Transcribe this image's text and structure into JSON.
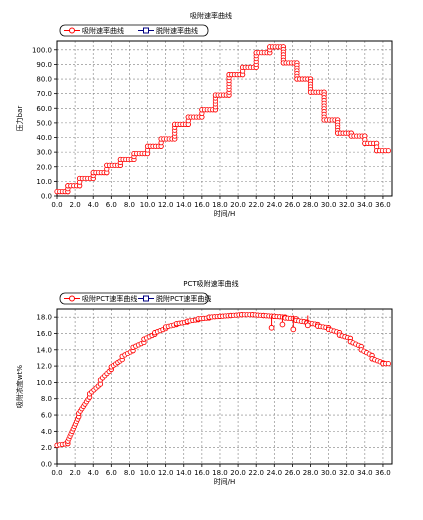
{
  "chart_data": [
    {
      "type": "line",
      "title": "吸附速率曲线",
      "xlabel": "时间/H",
      "ylabel": "压力bar",
      "xlim": [
        0,
        37
      ],
      "ylim": [
        0,
        106
      ],
      "xticks": [
        "0.0",
        "2.0",
        "4.0",
        "6.0",
        "8.0",
        "10.0",
        "12.0",
        "14.0",
        "16.0",
        "18.0",
        "20.0",
        "22.0",
        "24.0",
        "26.0",
        "28.0",
        "30.0",
        "32.0",
        "34.0",
        "36.0"
      ],
      "yticks": [
        "0.0",
        "10.0",
        "20.0",
        "30.0",
        "40.0",
        "50.0",
        "60.0",
        "70.0",
        "80.0",
        "90.0",
        "100.0"
      ],
      "grid": true,
      "legend_position": "top-left",
      "colors": {
        "adsorption": "#ff0000",
        "desorption": "#000080"
      },
      "series": [
        {
          "name": "吸附速率曲线",
          "x": [
            0,
            1.2,
            1.2,
            2.5,
            2.5,
            4.0,
            4.0,
            5.5,
            5.5,
            7.0,
            7.0,
            8.5,
            8.5,
            10.0,
            10.0,
            11.5,
            11.5,
            13.0,
            13.0,
            14.5,
            14.5,
            16.0,
            16.0,
            17.5,
            17.5,
            19.0,
            19.0,
            20.5,
            20.5,
            22.0,
            22.0,
            23.5,
            23.5,
            25.0,
            25.0,
            26.5,
            26.5,
            28.0,
            28.0,
            29.5,
            29.5,
            31.0,
            31.0,
            32.5,
            32.5,
            34.0,
            34.0,
            35.3,
            35.3,
            36.6
          ],
          "y": [
            3,
            3,
            7,
            7,
            12,
            12,
            16,
            16,
            21,
            21,
            25,
            25,
            29,
            29,
            34,
            34,
            39,
            39,
            49,
            49,
            54,
            54,
            59,
            59,
            69,
            69,
            83,
            83,
            88,
            88,
            98,
            98,
            102,
            102,
            91,
            91,
            80,
            80,
            71,
            71,
            52,
            52,
            43,
            43,
            41,
            41,
            36,
            36,
            31,
            31
          ]
        },
        {
          "name": "脱附速率曲线",
          "x": [],
          "y": []
        }
      ]
    },
    {
      "type": "line",
      "title": "PCT吸附速率曲线",
      "xlabel": "时间/H",
      "ylabel": "吸附浓度wt%",
      "xlim": [
        0,
        37
      ],
      "ylim": [
        0,
        19
      ],
      "xticks": [
        "0.0",
        "2.0",
        "4.0",
        "6.0",
        "8.0",
        "10.0",
        "12.0",
        "14.0",
        "16.0",
        "18.0",
        "20.0",
        "22.0",
        "24.0",
        "26.0",
        "28.0",
        "30.0",
        "32.0",
        "34.0",
        "36.0"
      ],
      "yticks": [
        "0.0",
        "2.0",
        "4.0",
        "6.0",
        "8.0",
        "10.0",
        "12.0",
        "14.0",
        "16.0",
        "18.0"
      ],
      "grid": true,
      "legend_position": "top-left",
      "colors": {
        "adsorption": "#ff0000",
        "desorption": "#000080"
      },
      "series": [
        {
          "name": "吸附PCT速率曲线",
          "x": [
            0,
            1.2,
            1.2,
            2.4,
            2.4,
            3.6,
            3.6,
            4.8,
            4.8,
            6.0,
            6.0,
            7.2,
            7.2,
            8.4,
            8.4,
            9.6,
            9.6,
            10.8,
            10.8,
            12.0,
            12.0,
            13.2,
            13.2,
            14.4,
            14.4,
            15.6,
            15.6,
            16.8,
            16.8,
            18.0,
            18.0,
            19.2,
            19.2,
            20.4,
            20.4,
            21.6,
            21.6,
            22.8,
            22.8,
            24.0,
            24.0,
            25.2,
            25.2,
            26.4,
            26.4,
            27.6,
            27.6,
            28.8,
            28.8,
            30.0,
            30.0,
            31.2,
            31.2,
            32.4,
            32.4,
            33.6,
            33.6,
            34.8,
            34.8,
            36.0,
            36.0,
            36.6
          ],
          "y": [
            2.3,
            2.5,
            2.8,
            5.8,
            6.2,
            8.2,
            8.6,
            9.8,
            10.3,
            11.6,
            11.9,
            12.8,
            13.2,
            13.9,
            14.3,
            14.9,
            15.3,
            15.9,
            16.1,
            16.6,
            16.8,
            17.1,
            17.2,
            17.4,
            17.5,
            17.7,
            17.8,
            17.9,
            18.0,
            18.1,
            18.1,
            18.2,
            18.2,
            18.3,
            18.3,
            18.3,
            18.3,
            18.2,
            18.2,
            18.1,
            18.1,
            18.0,
            17.9,
            17.8,
            17.6,
            17.4,
            17.3,
            17.1,
            16.9,
            16.7,
            16.5,
            16.1,
            15.8,
            15.4,
            15.0,
            14.4,
            14.0,
            13.3,
            12.9,
            12.4,
            12.3,
            12.3
          ],
          "outliers": [
            [
              23.7,
              16.7
            ],
            [
              24.9,
              17.1
            ],
            [
              26.1,
              16.5
            ],
            [
              27.7,
              17.0
            ]
          ]
        },
        {
          "name": "脱附PCT速率曲线",
          "x": [],
          "y": []
        }
      ]
    }
  ]
}
